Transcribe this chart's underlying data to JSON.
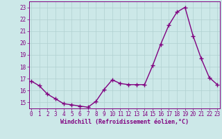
{
  "x": [
    0,
    1,
    2,
    3,
    4,
    5,
    6,
    7,
    8,
    9,
    10,
    11,
    12,
    13,
    14,
    15,
    16,
    17,
    18,
    19,
    20,
    21,
    22,
    23
  ],
  "y": [
    16.8,
    16.4,
    15.7,
    15.3,
    14.9,
    14.8,
    14.7,
    14.6,
    15.1,
    16.1,
    16.9,
    16.6,
    16.5,
    16.5,
    16.5,
    18.1,
    19.9,
    21.5,
    22.6,
    23.0,
    20.6,
    18.7,
    17.1,
    16.5
  ],
  "line_color": "#800080",
  "marker": "+",
  "marker_size": 4,
  "marker_ew": 1.0,
  "xlabel": "Windchill (Refroidissement éolien,°C)",
  "xlabel_fontsize": 6.0,
  "bg_color": "#cce8e8",
  "grid_color": "#b0d0d0",
  "ylim": [
    14.5,
    23.5
  ],
  "yticks": [
    15,
    16,
    17,
    18,
    19,
    20,
    21,
    22,
    23
  ],
  "xticks": [
    0,
    1,
    2,
    3,
    4,
    5,
    6,
    7,
    8,
    9,
    10,
    11,
    12,
    13,
    14,
    15,
    16,
    17,
    18,
    19,
    20,
    21,
    22,
    23
  ],
  "tick_fontsize": 5.5,
  "line_width": 1.0,
  "xlim": [
    -0.3,
    23.3
  ]
}
